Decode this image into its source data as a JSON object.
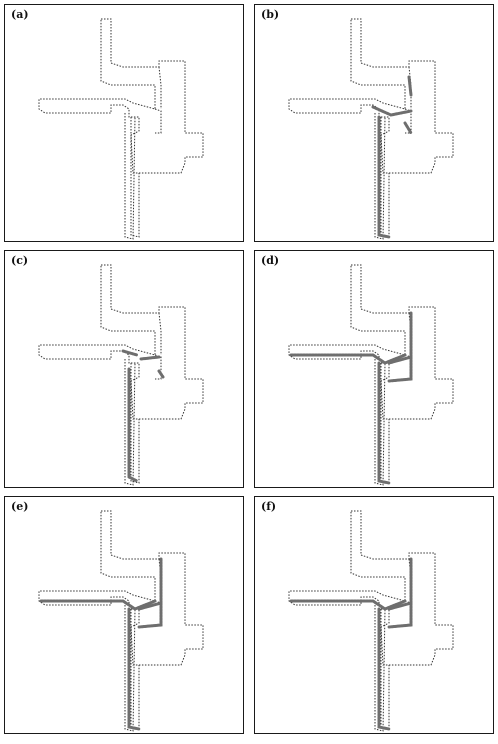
{
  "panels": [
    {
      "label": "(a)",
      "highlights": []
    },
    {
      "label": "(b)",
      "highlights": [
        "vertical-corridor",
        "tjunction-top",
        "right-stub"
      ]
    },
    {
      "label": "(c)",
      "highlights": [
        "vertical-corridor-thin",
        "junction-nodes"
      ]
    },
    {
      "label": "(d)",
      "highlights": [
        "vertical-corridor",
        "horizontal-corridor",
        "right-column"
      ]
    },
    {
      "label": "(e)",
      "highlights": [
        "vertical-corridor",
        "horizontal-corridor",
        "right-column"
      ]
    },
    {
      "label": "(f)",
      "highlights": [
        "vertical-corridor",
        "horizontal-corridor",
        "right-column"
      ]
    }
  ],
  "colors": {
    "outline": "#333333",
    "highlight": "#6e6e6e"
  }
}
